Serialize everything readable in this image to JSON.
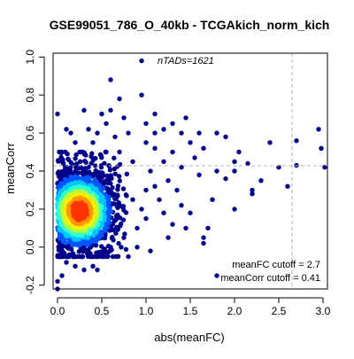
{
  "chart_data": {
    "type": "scatter",
    "title": "GSE99051_786_O_40kb - TCGAkich_norm_kich",
    "xlabel": "abs(meanFC)",
    "ylabel": "meanCorr",
    "xlim": [
      -0.05,
      3.05
    ],
    "ylim": [
      -0.22,
      1.02
    ],
    "xticks": [
      "0.0",
      "0.5",
      "1.0",
      "1.5",
      "2.0",
      "2.5",
      "3.0"
    ],
    "yticks": [
      "-0.2",
      "0.0",
      "0.2",
      "0.4",
      "0.6",
      "0.8",
      "1.0"
    ],
    "grid": false,
    "annotation": "nTADs=1621",
    "cutoffs": {
      "meanFC": 2.7,
      "meanCorr": 0.41,
      "meanFC_label": "meanFC cutoff = 2.7",
      "meanCorr_label": "meanCorr cutoff = 0.41"
    },
    "n_points": 1621,
    "density_colors": [
      "#00008b",
      "#0055ff",
      "#00c8ff",
      "#30ffd0",
      "#b0ff40",
      "#ffee00",
      "#ff9900",
      "#ff3300"
    ],
    "dense_region": {
      "center_x": 0.25,
      "center_y": 0.19,
      "x_range": [
        0.0,
        0.8
      ],
      "y_range": [
        -0.05,
        0.5
      ]
    },
    "sparse_points": [
      [
        0.95,
        0.98
      ],
      [
        0.6,
        0.88
      ],
      [
        0.95,
        0.8
      ],
      [
        0.7,
        0.78
      ],
      [
        0.3,
        0.72
      ],
      [
        0.0,
        0.7
      ],
      [
        0.55,
        0.65
      ],
      [
        0.45,
        0.6
      ],
      [
        0.8,
        0.6
      ],
      [
        1.0,
        0.55
      ],
      [
        1.1,
        0.6
      ],
      [
        1.3,
        0.65
      ],
      [
        1.4,
        0.6
      ],
      [
        1.45,
        0.68
      ],
      [
        1.5,
        0.55
      ],
      [
        1.6,
        0.6
      ],
      [
        1.65,
        0.52
      ],
      [
        1.8,
        0.6
      ],
      [
        1.9,
        0.58
      ],
      [
        2.0,
        0.45
      ],
      [
        2.05,
        0.5
      ],
      [
        2.15,
        0.44
      ],
      [
        2.4,
        0.55
      ],
      [
        2.7,
        0.56
      ],
      [
        2.95,
        0.62
      ],
      [
        2.98,
        0.52
      ],
      [
        3.02,
        0.42
      ],
      [
        2.7,
        0.43
      ],
      [
        2.5,
        0.42
      ],
      [
        2.6,
        0.32
      ],
      [
        2.3,
        0.35
      ],
      [
        2.2,
        0.3
      ],
      [
        2.0,
        0.4
      ],
      [
        1.9,
        0.36
      ],
      [
        1.8,
        0.4
      ],
      [
        1.75,
        0.25
      ],
      [
        1.6,
        0.38
      ],
      [
        1.55,
        0.47
      ],
      [
        1.4,
        0.42
      ],
      [
        1.35,
        0.3
      ],
      [
        1.3,
        0.5
      ],
      [
        1.2,
        0.45
      ],
      [
        1.25,
        0.35
      ],
      [
        1.15,
        0.25
      ],
      [
        1.1,
        0.52
      ],
      [
        1.05,
        0.4
      ],
      [
        1.0,
        0.3
      ],
      [
        1.0,
        0.15
      ],
      [
        0.95,
        0.2
      ],
      [
        0.9,
        0.1
      ],
      [
        0.85,
        0.45
      ],
      [
        0.85,
        0.25
      ],
      [
        1.3,
        0.12
      ],
      [
        1.45,
        0.1
      ],
      [
        1.5,
        0.18
      ],
      [
        1.7,
        0.1
      ],
      [
        1.4,
        0.22
      ],
      [
        2.0,
        0.2
      ],
      [
        2.2,
        0.28
      ],
      [
        1.2,
        0.18
      ],
      [
        1.1,
        0.32
      ],
      [
        0.75,
        0.05
      ],
      [
        0.6,
        0.0
      ],
      [
        0.5,
        -0.05
      ],
      [
        0.4,
        -0.1
      ],
      [
        0.3,
        -0.12
      ],
      [
        0.2,
        -0.1
      ],
      [
        0.1,
        -0.08
      ],
      [
        0.05,
        -0.15
      ],
      [
        0.0,
        -0.18
      ],
      [
        0.0,
        -0.22
      ],
      [
        0.45,
        -0.12
      ],
      [
        0.8,
        -0.05
      ],
      [
        0.9,
        0.0
      ],
      [
        1.25,
        0.05
      ],
      [
        1.05,
        -0.02
      ],
      [
        1.65,
        0.05
      ],
      [
        1.8,
        -0.15
      ],
      [
        1.65,
        0.02
      ],
      [
        0.55,
        0.5
      ],
      [
        0.7,
        0.5
      ],
      [
        0.4,
        0.55
      ],
      [
        0.2,
        0.55
      ],
      [
        0.1,
        0.62
      ],
      [
        0.25,
        0.5
      ],
      [
        0.6,
        0.72
      ],
      [
        0.35,
        0.62
      ],
      [
        0.65,
        0.58
      ],
      [
        0.75,
        0.68
      ],
      [
        0.5,
        0.7
      ],
      [
        0.15,
        0.6
      ],
      [
        1.1,
        0.7
      ],
      [
        1.2,
        0.62
      ],
      [
        1.0,
        0.65
      ]
    ]
  }
}
